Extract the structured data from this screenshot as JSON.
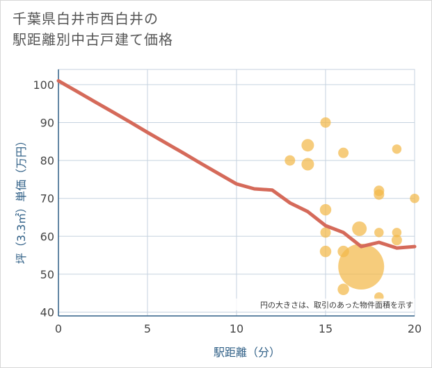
{
  "chart_data": {
    "type": "scatter",
    "title_line1": "千葉県白井市西白井の",
    "title_line2": "駅距離別中古戸建て価格",
    "xlabel": "駅距離（分）",
    "ylabel": "坪（3.3㎡）単価（万円）",
    "xlim": [
      0,
      20
    ],
    "ylim": [
      39,
      104
    ],
    "x_ticks": [
      0,
      5,
      10,
      15,
      20
    ],
    "y_ticks": [
      40,
      50,
      60,
      70,
      80,
      90,
      100
    ],
    "note": "円の大きさは、取引のあった物件面積を示す",
    "trend_line": {
      "x": [
        0,
        1,
        2,
        3,
        4,
        5,
        6,
        7,
        8,
        9,
        10,
        11,
        12,
        13,
        14,
        15,
        16,
        17,
        18,
        19,
        20
      ],
      "y": [
        101,
        98.3,
        95.6,
        92.9,
        90.2,
        87.4,
        84.7,
        82,
        79.2,
        76.5,
        73.8,
        72.5,
        72.2,
        68.8,
        66.5,
        62.8,
        61,
        57.3,
        58.4,
        56.9,
        57.3
      ]
    },
    "points": [
      {
        "x": 13,
        "y": 80,
        "size": 1
      },
      {
        "x": 14,
        "y": 84,
        "size": 1.2
      },
      {
        "x": 14,
        "y": 79,
        "size": 1.2
      },
      {
        "x": 15,
        "y": 90,
        "size": 1
      },
      {
        "x": 15,
        "y": 67,
        "size": 1.1
      },
      {
        "x": 15,
        "y": 61,
        "size": 1
      },
      {
        "x": 15,
        "y": 56,
        "size": 1.1
      },
      {
        "x": 16,
        "y": 82,
        "size": 1
      },
      {
        "x": 16,
        "y": 56,
        "size": 1.1
      },
      {
        "x": 16,
        "y": 46,
        "size": 1.1
      },
      {
        "x": 16.9,
        "y": 62,
        "size": 1.4
      },
      {
        "x": 17,
        "y": 52,
        "size": 4.4
      },
      {
        "x": 18,
        "y": 72,
        "size": 1
      },
      {
        "x": 18,
        "y": 71,
        "size": 1
      },
      {
        "x": 18,
        "y": 61,
        "size": 0.9
      },
      {
        "x": 18,
        "y": 44,
        "size": 0.9
      },
      {
        "x": 19,
        "y": 83,
        "size": 0.9
      },
      {
        "x": 19,
        "y": 61,
        "size": 0.9
      },
      {
        "x": 19,
        "y": 59,
        "size": 1
      },
      {
        "x": 20,
        "y": 70,
        "size": 0.9
      }
    ],
    "colors": {
      "point": "#f2b84a",
      "line": "#d56a5a",
      "grid": "#c5d2df",
      "axis": "#2f5f86",
      "tick": "#444444",
      "note_bg": "#ffffff"
    }
  }
}
